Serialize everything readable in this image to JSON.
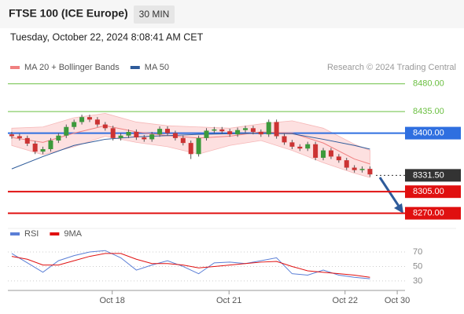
{
  "chart_data": {
    "type": "candlestick",
    "title": "FTSE 100 (ICE Europe)",
    "timeframe": "30 MIN",
    "subtitle": "Tuesday, October 22, 2024 8:08:41 AM CET",
    "credit": "Research © 2024 Trading Central",
    "up_color": "#3c9a3c",
    "down_color": "#cc3333",
    "xlim": [
      -0.5,
      50.5
    ],
    "ylim": [
      8253,
      8495
    ],
    "xticks": [
      {
        "value": 12.9,
        "label": "Oct 18"
      },
      {
        "value": 27.9,
        "label": "Oct 21"
      },
      {
        "value": 42.8,
        "label": "Oct 22"
      },
      {
        "value": 49.5,
        "label": "Oct 30"
      }
    ],
    "x": [
      0,
      1,
      2,
      3,
      4,
      5,
      6,
      7,
      8,
      9,
      10,
      11,
      12,
      13,
      14,
      15,
      16,
      17,
      18,
      19,
      20,
      21,
      22,
      23,
      24,
      25,
      26,
      27,
      28,
      29,
      30,
      31,
      32,
      33,
      34,
      35,
      36,
      37,
      38,
      39,
      40,
      41,
      42,
      43,
      44,
      45,
      46
    ],
    "open": [
      8398,
      8395,
      8392,
      8383,
      8370,
      8374,
      8388,
      8396,
      8410,
      8418,
      8426,
      8422,
      8414,
      8408,
      8392,
      8396,
      8402,
      8393,
      8390,
      8398,
      8407,
      8400,
      8392,
      8384,
      8366,
      8392,
      8404,
      8406,
      8403,
      8398,
      8405,
      8408,
      8402,
      8398,
      8418,
      8395,
      8385,
      8378,
      8375,
      8382,
      8360,
      8372,
      8362,
      8356,
      8344,
      8340,
      8342
    ],
    "high": [
      8402,
      8399,
      8396,
      8387,
      8378,
      8392,
      8400,
      8414,
      8422,
      8430,
      8430,
      8426,
      8418,
      8412,
      8400,
      8406,
      8406,
      8397,
      8402,
      8411,
      8411,
      8404,
      8396,
      8388,
      8396,
      8408,
      8410,
      8410,
      8407,
      8409,
      8412,
      8412,
      8406,
      8422,
      8422,
      8399,
      8389,
      8382,
      8386,
      8386,
      8376,
      8376,
      8366,
      8360,
      8348,
      8346,
      8346
    ],
    "low": [
      8391,
      8388,
      8379,
      8366,
      8366,
      8370,
      8384,
      8392,
      8406,
      8414,
      8418,
      8410,
      8404,
      8388,
      8388,
      8392,
      8389,
      8386,
      8386,
      8394,
      8396,
      8388,
      8380,
      8358,
      8362,
      8388,
      8400,
      8399,
      8394,
      8394,
      8401,
      8398,
      8394,
      8394,
      8391,
      8381,
      8374,
      8371,
      8371,
      8356,
      8356,
      8358,
      8352,
      8340,
      8336,
      8336,
      8329
    ],
    "close": [
      8395,
      8392,
      8383,
      8370,
      8374,
      8388,
      8396,
      8410,
      8418,
      8426,
      8422,
      8414,
      8408,
      8392,
      8396,
      8402,
      8393,
      8390,
      8398,
      8407,
      8400,
      8392,
      8384,
      8366,
      8392,
      8404,
      8406,
      8403,
      8398,
      8405,
      8408,
      8402,
      8398,
      8418,
      8395,
      8385,
      8378,
      8375,
      8382,
      8360,
      8372,
      8362,
      8356,
      8344,
      8340,
      8342,
      8333
    ],
    "overlays": [
      {
        "name": "MA 20 + Bollinger Bands",
        "color": "#f08080",
        "x": [
          0,
          4,
          8,
          12,
          16,
          20,
          24,
          28,
          32,
          36,
          40,
          44,
          46
        ],
        "values": [
          8393,
          8385,
          8400,
          8412,
          8402,
          8396,
          8392,
          8395,
          8402,
          8400,
          8384,
          8358,
          8350
        ],
        "bollinger": {
          "color": "#fde0e0",
          "upper": [
            8408,
            8410,
            8425,
            8432,
            8418,
            8412,
            8410,
            8408,
            8415,
            8420,
            8408,
            8382,
            8372
          ],
          "lower": [
            8380,
            8365,
            8378,
            8395,
            8385,
            8378,
            8366,
            8380,
            8388,
            8372,
            8352,
            8335,
            8328
          ]
        }
      },
      {
        "name": "MA 50",
        "color": "#2e5b9a",
        "x": [
          0,
          4,
          8,
          12,
          16,
          20,
          24,
          28,
          32,
          36,
          40,
          44,
          46
        ],
        "values": [
          8342,
          8362,
          8380,
          8390,
          8394,
          8396,
          8398,
          8399,
          8400,
          8399,
          8390,
          8380,
          8374
        ]
      }
    ],
    "levels": [
      {
        "value": 8480,
        "label": "8480.00",
        "color": "#6abf40",
        "boxed": false
      },
      {
        "value": 8435,
        "label": "8435.00",
        "color": "#6abf40",
        "boxed": false
      },
      {
        "value": 8400,
        "label": "8400.00",
        "color": "#2f6fe0",
        "boxed": true
      },
      {
        "value": 8331.5,
        "label": "8331.50",
        "color": "#333333",
        "boxed": true,
        "dotted": true
      },
      {
        "value": 8305,
        "label": "8305.00",
        "color": "#e01010",
        "boxed": true
      },
      {
        "value": 8270,
        "label": "8270.00",
        "color": "#e01010",
        "boxed": true
      }
    ],
    "rsi": {
      "ylim": [
        19,
        82
      ],
      "yticks": [
        70,
        50,
        30
      ],
      "series": [
        {
          "name": "RSI",
          "color": "#5b7fd6",
          "x": [
            0,
            2,
            4,
            6,
            8,
            10,
            12,
            14,
            16,
            18,
            20,
            22,
            24,
            26,
            28,
            30,
            32,
            34,
            36,
            38,
            40,
            42,
            44,
            46
          ],
          "values": [
            68,
            55,
            42,
            58,
            65,
            70,
            72,
            62,
            45,
            52,
            58,
            50,
            40,
            55,
            56,
            54,
            58,
            62,
            40,
            38,
            45,
            38,
            35,
            33
          ]
        },
        {
          "name": "9MA",
          "color": "#e01010",
          "x": [
            0,
            2,
            4,
            6,
            8,
            10,
            12,
            14,
            16,
            18,
            20,
            22,
            24,
            26,
            28,
            30,
            32,
            34,
            36,
            38,
            40,
            42,
            44,
            46
          ],
          "values": [
            64,
            60,
            52,
            52,
            58,
            64,
            68,
            68,
            60,
            54,
            54,
            52,
            48,
            50,
            52,
            54,
            56,
            57,
            50,
            44,
            42,
            40,
            38,
            35
          ]
        }
      ]
    }
  }
}
